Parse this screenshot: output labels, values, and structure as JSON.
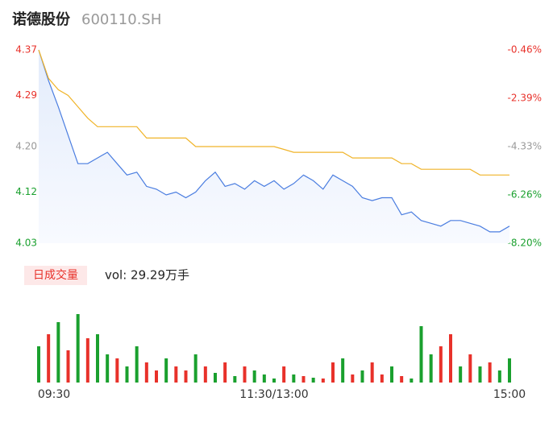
{
  "chart_data": [
    {
      "type": "line",
      "title": "诺德股份",
      "subtitle": "600110.SH",
      "x": [
        0,
        5,
        10,
        15,
        20,
        25,
        30,
        35,
        40,
        45,
        50,
        55,
        60,
        65,
        70,
        75,
        80,
        85,
        90,
        95,
        100,
        105,
        110,
        115,
        120,
        125,
        130,
        135,
        140,
        145,
        150,
        155,
        160,
        165,
        170,
        175,
        180,
        185,
        190,
        195,
        200,
        205,
        210,
        215,
        220,
        225,
        230,
        235,
        240
      ],
      "xlim": [
        0,
        240
      ],
      "series": [
        {
          "name": "price",
          "color": "#4a7de0",
          "values": [
            4.37,
            4.316,
            4.27,
            4.22,
            4.17,
            4.17,
            4.18,
            4.19,
            4.17,
            4.15,
            4.155,
            4.13,
            4.125,
            4.115,
            4.12,
            4.11,
            4.12,
            4.14,
            4.155,
            4.13,
            4.135,
            4.125,
            4.14,
            4.13,
            4.14,
            4.125,
            4.135,
            4.15,
            4.14,
            4.125,
            4.15,
            4.14,
            4.13,
            4.11,
            4.105,
            4.11,
            4.11,
            4.08,
            4.085,
            4.07,
            4.065,
            4.06,
            4.07,
            4.07,
            4.065,
            4.06,
            4.05,
            4.05,
            4.06
          ]
        },
        {
          "name": "average",
          "color": "#f0b429",
          "values": [
            4.37,
            4.32,
            4.3,
            4.29,
            4.27,
            4.25,
            4.235,
            4.235,
            4.235,
            4.235,
            4.235,
            4.215,
            4.215,
            4.215,
            4.215,
            4.215,
            4.2,
            4.2,
            4.2,
            4.2,
            4.2,
            4.2,
            4.2,
            4.2,
            4.2,
            4.195,
            4.19,
            4.19,
            4.19,
            4.19,
            4.19,
            4.19,
            4.18,
            4.18,
            4.18,
            4.18,
            4.18,
            4.17,
            4.17,
            4.16,
            4.16,
            4.16,
            4.16,
            4.16,
            4.16,
            4.15,
            4.15,
            4.15,
            4.15
          ]
        }
      ],
      "ylim": [
        4.03,
        4.37
      ],
      "yticks": [
        {
          "value": 4.37,
          "label": "4.37"
        },
        {
          "value": 4.29,
          "label": "4.29"
        },
        {
          "value": 4.2,
          "label": "4.20"
        },
        {
          "value": 4.12,
          "label": "4.12"
        },
        {
          "value": 4.03,
          "label": "4.03"
        }
      ],
      "y2lim": [
        -8.2,
        -0.46
      ],
      "y2ticks": [
        {
          "value": -0.46,
          "label": "-0.46%"
        },
        {
          "value": -2.39,
          "label": "-2.39%"
        },
        {
          "value": -4.33,
          "label": "-4.33%"
        },
        {
          "value": -6.26,
          "label": "-6.26%"
        },
        {
          "value": -8.2,
          "label": "-8.20%"
        }
      ],
      "tick_colors": [
        "#e8312a",
        "#e8312a",
        "#999999",
        "#1aa02e",
        "#1aa02e"
      ]
    },
    {
      "type": "bar",
      "tab": "日成交量",
      "label": "vol: 29.29万手",
      "x": [
        0,
        5,
        10,
        15,
        20,
        25,
        30,
        35,
        40,
        45,
        50,
        55,
        60,
        65,
        70,
        75,
        80,
        85,
        90,
        95,
        100,
        105,
        110,
        115,
        120,
        125,
        130,
        135,
        140,
        145,
        150,
        155,
        160,
        165,
        170,
        175,
        180,
        185,
        190,
        195,
        200,
        205,
        210,
        215,
        220,
        225,
        230,
        235,
        240
      ],
      "xlim": [
        0,
        240
      ],
      "values": [
        45,
        60,
        75,
        40,
        85,
        55,
        60,
        35,
        30,
        20,
        45,
        25,
        15,
        30,
        20,
        15,
        35,
        20,
        12,
        25,
        8,
        20,
        15,
        10,
        5,
        20,
        10,
        8,
        6,
        5,
        25,
        30,
        10,
        15,
        25,
        10,
        20,
        8,
        5,
        70,
        35,
        45,
        60,
        20,
        35,
        20,
        25,
        15,
        30
      ],
      "colors": [
        "#1aa02e",
        "#e8312a",
        "#1aa02e",
        "#e8312a",
        "#1aa02e",
        "#e8312a",
        "#1aa02e",
        "#1aa02e",
        "#e8312a",
        "#1aa02e",
        "#1aa02e",
        "#e8312a",
        "#e8312a",
        "#1aa02e",
        "#e8312a",
        "#e8312a",
        "#1aa02e",
        "#e8312a",
        "#1aa02e",
        "#e8312a",
        "#1aa02e",
        "#e8312a",
        "#1aa02e",
        "#1aa02e",
        "#1aa02e",
        "#e8312a",
        "#1aa02e",
        "#e8312a",
        "#1aa02e",
        "#e8312a",
        "#e8312a",
        "#1aa02e",
        "#e8312a",
        "#1aa02e",
        "#e8312a",
        "#e8312a",
        "#1aa02e",
        "#e8312a",
        "#1aa02e",
        "#1aa02e",
        "#1aa02e",
        "#e8312a",
        "#e8312a",
        "#1aa02e",
        "#e8312a",
        "#1aa02e",
        "#e8312a",
        "#1aa02e",
        "#1aa02e"
      ],
      "ylim": [
        0,
        100
      ],
      "xticks": [
        {
          "value": 0,
          "label": "09:30"
        },
        {
          "value": 120,
          "label": "11:30/13:00"
        },
        {
          "value": 240,
          "label": "15:00"
        }
      ]
    }
  ]
}
